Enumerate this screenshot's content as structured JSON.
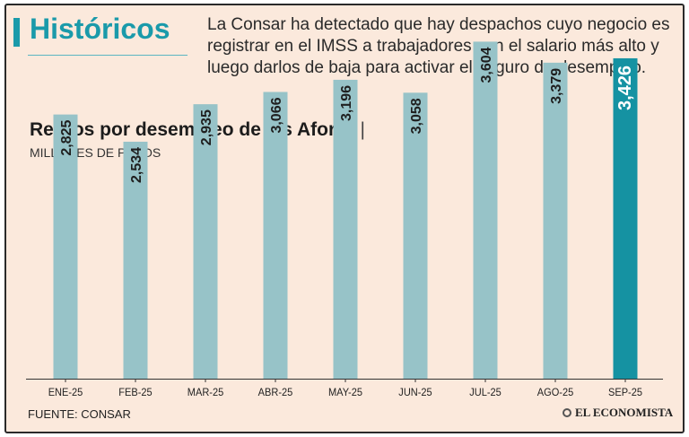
{
  "header": {
    "title": "Históricos",
    "intro": "La Consar ha detectado que hay despachos cuyo negocio es registrar en el IMSS a trabajadores con el salario más alto y luego darlos de baja para activar el seguro de desempleo."
  },
  "chart_data": {
    "type": "bar",
    "title": "Retiros por desempleo de las Afores",
    "subtitle": "MILLONES DE PESOS",
    "xlabel": "",
    "ylabel": "MILLONES DE PESOS",
    "ylim": [
      0,
      3800
    ],
    "grid": false,
    "categories": [
      "ENE-25",
      "FEB-25",
      "MAR-25",
      "ABR-25",
      "MAY-25",
      "JUN-25",
      "JUL-25",
      "AGO-25",
      "SEP-25"
    ],
    "values": [
      2825,
      2534,
      2935,
      3066,
      3196,
      3058,
      3604,
      3379,
      3426
    ],
    "labels": [
      "2,825",
      "2,534",
      "2,935",
      "3,066",
      "3,196",
      "3,058",
      "3,604",
      "3,379",
      "3,426"
    ],
    "highlight_index": 8,
    "colors": {
      "bar": "#97c3c8",
      "highlight": "#1592a2",
      "label": "#1f1f1f",
      "highlight_label": "#ffffff"
    }
  },
  "footer": {
    "source": "FUENTE: CONSAR",
    "logo_text": "EL ECONOMISTA"
  }
}
